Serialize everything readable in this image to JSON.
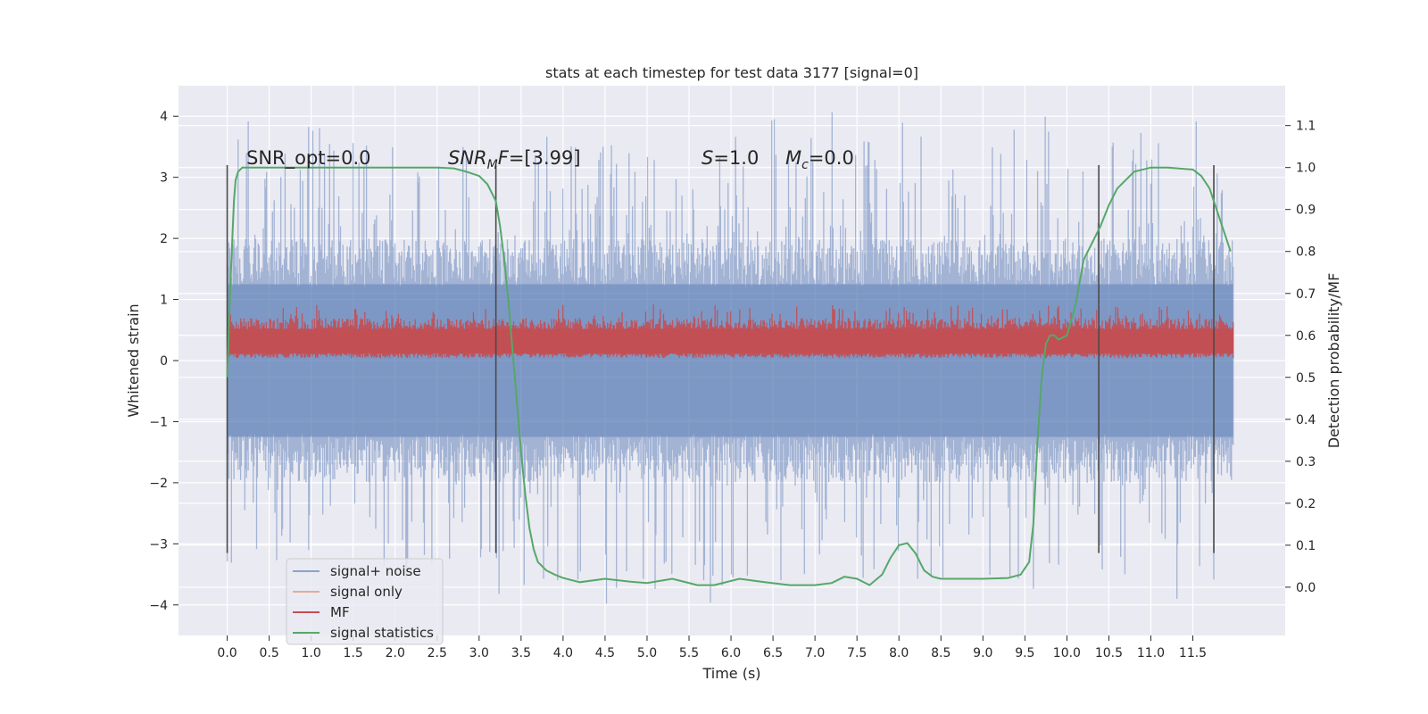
{
  "chart_data": {
    "type": "line",
    "title": "stats at each timestep for test data 3177 [signal=0]",
    "xlabel": "Time (s)",
    "ylabel": "Whitened strain",
    "y2label": "Detection probability/MF",
    "xlim": [
      -0.58,
      12.6
    ],
    "ylim": [
      -4.5,
      4.5
    ],
    "y2lim": [
      -0.115,
      1.195
    ],
    "xticks": [
      "0.0",
      "0.5",
      "1.0",
      "1.5",
      "2.0",
      "2.5",
      "3.0",
      "3.5",
      "4.0",
      "4.5",
      "5.0",
      "5.5",
      "6.0",
      "6.5",
      "7.0",
      "7.5",
      "8.0",
      "8.5",
      "9.0",
      "9.5",
      "10.0",
      "10.5",
      "11.0",
      "11.5"
    ],
    "yticks": [
      "−4",
      "−3",
      "−2",
      "−1",
      "0",
      "1",
      "2",
      "3",
      "4"
    ],
    "y2ticks": [
      "0.0",
      "0.1",
      "0.2",
      "0.3",
      "0.4",
      "0.5",
      "0.6",
      "0.7",
      "0.8",
      "0.9",
      "1.0",
      "1.1"
    ],
    "grid": true,
    "legend_position": "lower-left",
    "series": [
      {
        "name": "signal+ noise",
        "color": "#4c72b0",
        "description_values": "dense noise band, mostly within ±1.3, spikes from about −4.0 to 4.1, x range 0.0 to 11.98"
      },
      {
        "name": "signal only",
        "color": "#dd8452",
        "values": "flat zero"
      },
      {
        "name": "MF",
        "color": "#c44e52",
        "description_values": "dense band roughly 0.05 to 0.9 in strain units"
      },
      {
        "name": "signal statistics",
        "color": "#55a868",
        "axis": "right",
        "x": [
          0.0,
          0.02,
          0.05,
          0.08,
          0.1,
          0.13,
          0.18,
          0.3,
          0.5,
          1.0,
          1.5,
          2.0,
          2.5,
          2.7,
          2.85,
          3.0,
          3.1,
          3.2,
          3.25,
          3.3,
          3.35,
          3.4,
          3.45,
          3.5,
          3.55,
          3.6,
          3.65,
          3.7,
          3.8,
          3.9,
          4.0,
          4.2,
          4.5,
          4.8,
          5.0,
          5.3,
          5.6,
          5.8,
          6.1,
          6.4,
          6.7,
          7.0,
          7.2,
          7.35,
          7.5,
          7.65,
          7.8,
          7.9,
          8.0,
          8.1,
          8.2,
          8.3,
          8.4,
          8.5,
          8.7,
          9.0,
          9.3,
          9.45,
          9.55,
          9.6,
          9.65,
          9.7,
          9.75,
          9.8,
          9.85,
          9.9,
          10.0,
          10.1,
          10.2,
          10.4,
          10.5,
          10.6,
          10.8,
          11.0,
          11.2,
          11.5,
          11.6,
          11.7,
          11.75,
          11.8,
          11.9,
          11.95
        ],
        "values": [
          0.5,
          0.62,
          0.78,
          0.92,
          0.97,
          0.99,
          1.0,
          1.0,
          1.0,
          1.0,
          1.0,
          1.0,
          1.0,
          0.998,
          0.99,
          0.98,
          0.96,
          0.92,
          0.86,
          0.78,
          0.68,
          0.56,
          0.44,
          0.32,
          0.22,
          0.14,
          0.09,
          0.06,
          0.04,
          0.03,
          0.022,
          0.012,
          0.02,
          0.013,
          0.01,
          0.02,
          0.005,
          0.005,
          0.02,
          0.012,
          0.005,
          0.005,
          0.01,
          0.025,
          0.02,
          0.005,
          0.03,
          0.07,
          0.1,
          0.105,
          0.08,
          0.04,
          0.025,
          0.02,
          0.02,
          0.02,
          0.022,
          0.03,
          0.06,
          0.15,
          0.35,
          0.5,
          0.58,
          0.6,
          0.6,
          0.59,
          0.6,
          0.67,
          0.78,
          0.86,
          0.91,
          0.95,
          0.99,
          1.0,
          1.0,
          0.995,
          0.98,
          0.95,
          0.92,
          0.89,
          0.83,
          0.8
        ]
      }
    ],
    "vlines_x": [
      0.0,
      3.2,
      10.38,
      11.75
    ],
    "annotations": [
      {
        "text_plain": "SNR_opt=0.0"
      },
      {
        "text_italic": "SNR",
        "subscript": "M",
        "text_tail_italic": "F",
        "text_rest": "=[3.99]"
      },
      {
        "text_italic": "S",
        "text_rest": "=1.0"
      },
      {
        "text_italic": "M",
        "subscript": "c",
        "text_rest": "=0.0"
      }
    ]
  },
  "legend_labels": [
    "signal+ noise",
    "signal only",
    "MF",
    "signal statistics"
  ],
  "annot": {
    "snr_opt": "SNR_opt=0.0",
    "snr_mf_italic": "SNR",
    "snr_mf_sub": "M",
    "snr_mf_f": "F",
    "snr_mf_rest": "=[3.99]",
    "s_italic": "S",
    "s_rest": "=1.0",
    "mc_italic": "M",
    "mc_sub": "c",
    "mc_rest": "=0.0"
  }
}
